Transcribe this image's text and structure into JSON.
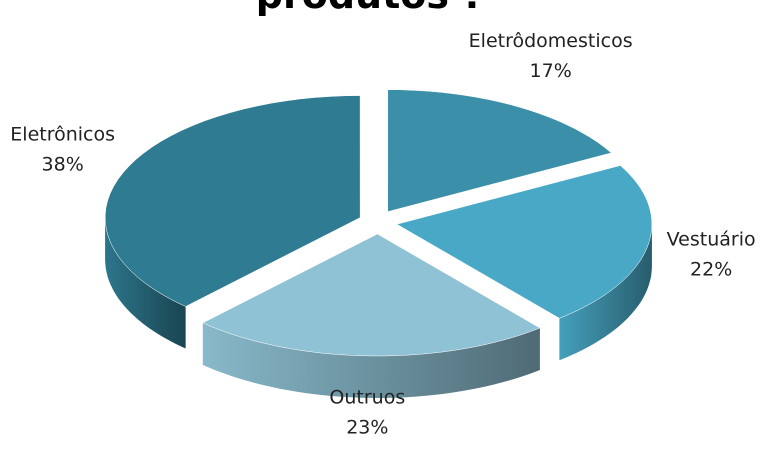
{
  "chart_data": {
    "type": "pie3d",
    "title": "produtos ?",
    "categories": [
      "Eletrôdomesticos",
      "Vestuário",
      "Outruos",
      "Eletrônicos"
    ],
    "values": [
      17,
      22,
      23,
      38
    ],
    "value_labels": [
      "17%",
      "22%",
      "23%",
      "38%"
    ],
    "colors": [
      "#3b8fa8",
      "#48a8c5",
      "#8fc2d4",
      "#2f7c92"
    ]
  }
}
